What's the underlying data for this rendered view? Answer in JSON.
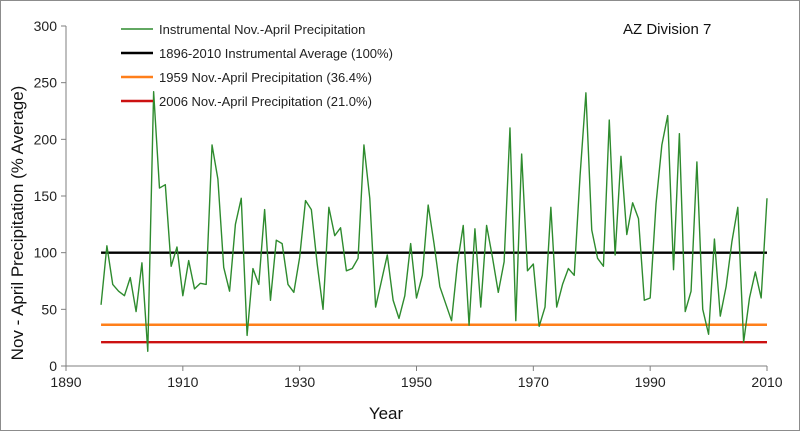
{
  "chart_data": {
    "type": "line",
    "annotation": "AZ Division 7",
    "xlabel": "Year",
    "ylabel": "Nov - April Precipitation (% Average)",
    "xlim": [
      1890,
      2010
    ],
    "ylim": [
      0,
      300
    ],
    "xticks": [
      "1890",
      "1910",
      "1930",
      "1950",
      "1970",
      "1990",
      "2010"
    ],
    "yticks": [
      "0",
      "50",
      "100",
      "150",
      "200",
      "250",
      "300"
    ],
    "grid": false,
    "legend_position": "top-left",
    "series": [
      {
        "name": "Instrumental Nov.-April Precipitation",
        "color": "#2e8b2e",
        "x": [
          1896,
          1897,
          1898,
          1899,
          1900,
          1901,
          1902,
          1903,
          1904,
          1905,
          1906,
          1907,
          1908,
          1909,
          1910,
          1911,
          1912,
          1913,
          1914,
          1915,
          1916,
          1917,
          1918,
          1919,
          1920,
          1921,
          1922,
          1923,
          1924,
          1925,
          1926,
          1927,
          1928,
          1929,
          1930,
          1931,
          1932,
          1933,
          1934,
          1935,
          1936,
          1937,
          1938,
          1939,
          1940,
          1941,
          1942,
          1943,
          1944,
          1945,
          1946,
          1947,
          1948,
          1949,
          1950,
          1951,
          1952,
          1953,
          1954,
          1955,
          1956,
          1957,
          1958,
          1959,
          1960,
          1961,
          1962,
          1963,
          1964,
          1965,
          1966,
          1967,
          1968,
          1969,
          1970,
          1971,
          1972,
          1973,
          1974,
          1975,
          1976,
          1977,
          1978,
          1979,
          1980,
          1981,
          1982,
          1983,
          1984,
          1985,
          1986,
          1987,
          1988,
          1989,
          1990,
          1991,
          1992,
          1993,
          1994,
          1995,
          1996,
          1997,
          1998,
          1999,
          2000,
          2001,
          2002,
          2003,
          2004,
          2005,
          2006,
          2007,
          2008,
          2009,
          2010
        ],
        "y": [
          54,
          106,
          72,
          66,
          62,
          78,
          48,
          91,
          13,
          242,
          157,
          160,
          88,
          105,
          62,
          93,
          68,
          73,
          72,
          195,
          165,
          87,
          66,
          125,
          148,
          27,
          86,
          72,
          138,
          58,
          111,
          108,
          72,
          65,
          96,
          146,
          138,
          90,
          50,
          140,
          115,
          122,
          84,
          86,
          95,
          195,
          148,
          52,
          75,
          98,
          58,
          42,
          62,
          108,
          60,
          80,
          142,
          108,
          70,
          55,
          40,
          90,
          124,
          36,
          121,
          52,
          124,
          96,
          65,
          92,
          210,
          40,
          187,
          84,
          90,
          35,
          52,
          140,
          52,
          72,
          86,
          80,
          168,
          241,
          120,
          95,
          88,
          217,
          98,
          185,
          116,
          144,
          130,
          58,
          60,
          143,
          195,
          221,
          85,
          205,
          48,
          66,
          180,
          50,
          28,
          112,
          44,
          70,
          110,
          140,
          21,
          60,
          83,
          60,
          148
        ]
      },
      {
        "name": "1896-2010 Instrumental Average (100%)",
        "color": "#000000",
        "x": [
          1896,
          2010
        ],
        "y": [
          100,
          100
        ]
      },
      {
        "name": "1959 Nov.-April Precipitation (36.4%)",
        "color": "#ff7f1a",
        "x": [
          1896,
          2010
        ],
        "y": [
          36.4,
          36.4
        ]
      },
      {
        "name": "2006 Nov.-April Precipitation (21.0%)",
        "color": "#cc1111",
        "x": [
          1896,
          2010
        ],
        "y": [
          21.0,
          21.0
        ]
      }
    ]
  }
}
